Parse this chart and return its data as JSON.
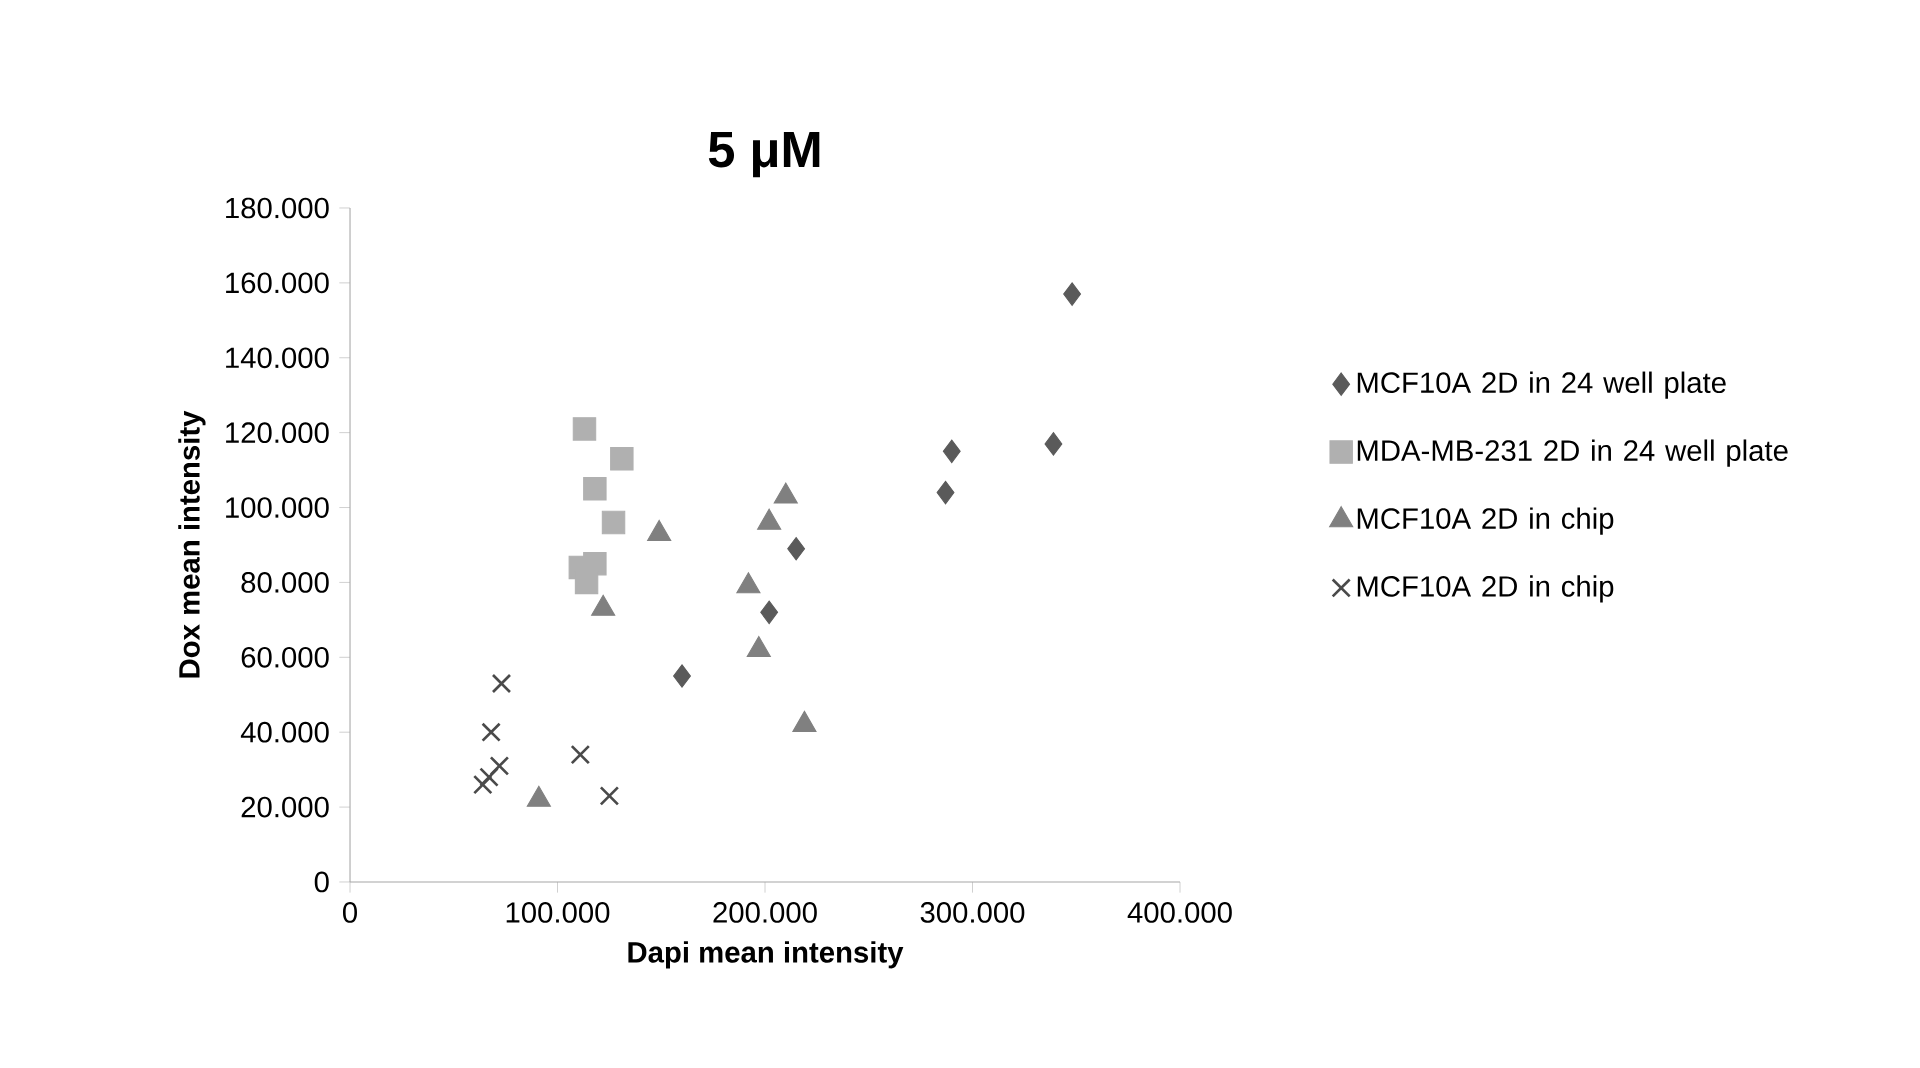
{
  "chart_data": {
    "type": "scatter",
    "title": "5 μM",
    "xlabel": "Dapi mean intensity",
    "ylabel": "Dox mean intensity",
    "xlim": [
      0,
      400000
    ],
    "ylim": [
      0,
      180000
    ],
    "xticks": [
      0,
      {
        "value": 100000,
        "label": "100.000"
      },
      {
        "value": 200000,
        "label": "200.000"
      },
      {
        "value": 300000,
        "label": "300.000"
      },
      {
        "value": 400000,
        "label": "400.000"
      }
    ],
    "yticks": [
      0,
      {
        "value": 20000,
        "label": "20.000"
      },
      {
        "value": 40000,
        "label": "40.000"
      },
      {
        "value": 60000,
        "label": "60.000"
      },
      {
        "value": 80000,
        "label": "80.000"
      },
      {
        "value": 100000,
        "label": "100.000"
      },
      {
        "value": 120000,
        "label": "120.000"
      },
      {
        "value": 140000,
        "label": "140.000"
      },
      {
        "value": 160000,
        "label": "160.000"
      },
      {
        "value": 180000,
        "label": "180.000"
      }
    ],
    "grid": false,
    "legend": "right",
    "series": [
      {
        "name": "MCF10A 2D in 24 well plate",
        "color": "#5a5a5a",
        "marker": "diamond",
        "x": [
          348000,
          290000,
          339000,
          287000,
          215000,
          202000,
          160000
        ],
        "values": [
          157000,
          115000,
          117000,
          104000,
          89000,
          72000,
          55000
        ]
      },
      {
        "name": "MDA-MB-231 2D in 24 well plate",
        "color": "#b0b0b0",
        "marker": "square",
        "x": [
          113000,
          131000,
          118000,
          127000,
          111000,
          118000,
          114000
        ],
        "values": [
          121000,
          113000,
          105000,
          96000,
          84000,
          85000,
          80000
        ]
      },
      {
        "name": "MCF10A 2D in chip",
        "color": "#808080",
        "marker": "triangle",
        "x": [
          210000,
          202000,
          149000,
          192000,
          122000,
          197000,
          219000,
          91000
        ],
        "values": [
          103000,
          96000,
          93000,
          79000,
          73000,
          62000,
          42000,
          22000
        ]
      },
      {
        "name": "MCF10A 2D in chip",
        "color": "#4a4a4a",
        "marker": "cross",
        "x": [
          73000,
          68000,
          72000,
          67000,
          64000,
          111000,
          125000
        ],
        "values": [
          53000,
          40000,
          31000,
          28000,
          26000,
          34000,
          23000
        ]
      }
    ]
  }
}
